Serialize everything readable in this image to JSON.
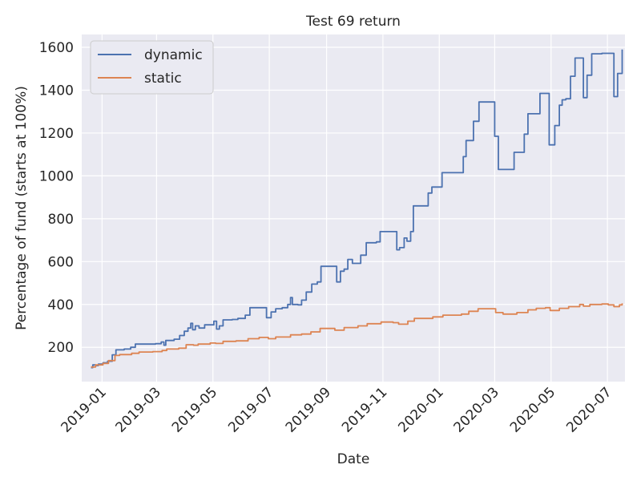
{
  "chart_data": {
    "type": "line",
    "title": "Test 69 return",
    "xlabel": "Date",
    "ylabel": "Percentage of fund (starts at 100%)",
    "xlim": [
      "2018-12-10",
      "2020-07-20"
    ],
    "ylim": [
      40,
      1660
    ],
    "y_ticks": [
      200,
      400,
      600,
      800,
      1000,
      1200,
      1400,
      1600
    ],
    "x_ticks": [
      "2019-01",
      "2019-03",
      "2019-05",
      "2019-07",
      "2019-09",
      "2019-11",
      "2020-01",
      "2020-03",
      "2020-05",
      "2020-07"
    ],
    "grid": true,
    "legend_position": "upper-left",
    "colors": {
      "background": "#eaeaf2",
      "grid": "#ffffff",
      "dynamic": "#4c72b0",
      "static": "#dd8452"
    },
    "series": [
      {
        "name": "dynamic",
        "points": [
          [
            "2018-12-20",
            105
          ],
          [
            "2018-12-22",
            118
          ],
          [
            "2018-12-25",
            115
          ],
          [
            "2018-12-28",
            122
          ],
          [
            "2019-01-02",
            128
          ],
          [
            "2019-01-07",
            135
          ],
          [
            "2019-01-12",
            165
          ],
          [
            "2019-01-16",
            188
          ],
          [
            "2019-01-25",
            192
          ],
          [
            "2019-02-01",
            200
          ],
          [
            "2019-02-06",
            215
          ],
          [
            "2019-02-15",
            215
          ],
          [
            "2019-02-28",
            217
          ],
          [
            "2019-03-06",
            225
          ],
          [
            "2019-03-09",
            210
          ],
          [
            "2019-03-11",
            232
          ],
          [
            "2019-03-20",
            238
          ],
          [
            "2019-03-26",
            255
          ],
          [
            "2019-03-31",
            275
          ],
          [
            "2019-04-04",
            290
          ],
          [
            "2019-04-07",
            312
          ],
          [
            "2019-04-09",
            282
          ],
          [
            "2019-04-12",
            300
          ],
          [
            "2019-04-16",
            290
          ],
          [
            "2019-04-22",
            305
          ],
          [
            "2019-04-28",
            305
          ],
          [
            "2019-05-02",
            322
          ],
          [
            "2019-05-05",
            285
          ],
          [
            "2019-05-08",
            300
          ],
          [
            "2019-05-12",
            328
          ],
          [
            "2019-05-22",
            330
          ],
          [
            "2019-05-28",
            335
          ],
          [
            "2019-06-05",
            350
          ],
          [
            "2019-06-10",
            385
          ],
          [
            "2019-06-22",
            385
          ],
          [
            "2019-06-28",
            338
          ],
          [
            "2019-07-03",
            365
          ],
          [
            "2019-07-08",
            380
          ],
          [
            "2019-07-15",
            385
          ],
          [
            "2019-07-21",
            400
          ],
          [
            "2019-07-24",
            432
          ],
          [
            "2019-07-26",
            400
          ],
          [
            "2019-08-01",
            398
          ],
          [
            "2019-08-05",
            420
          ],
          [
            "2019-08-10",
            458
          ],
          [
            "2019-08-16",
            495
          ],
          [
            "2019-08-22",
            505
          ],
          [
            "2019-08-26",
            578
          ],
          [
            "2019-09-08",
            578
          ],
          [
            "2019-09-12",
            505
          ],
          [
            "2019-09-16",
            555
          ],
          [
            "2019-09-20",
            565
          ],
          [
            "2019-09-24",
            610
          ],
          [
            "2019-09-29",
            592
          ],
          [
            "2019-10-08",
            630
          ],
          [
            "2019-10-14",
            688
          ],
          [
            "2019-10-25",
            692
          ],
          [
            "2019-10-29",
            740
          ],
          [
            "2019-11-14",
            740
          ],
          [
            "2019-11-16",
            655
          ],
          [
            "2019-11-19",
            665
          ],
          [
            "2019-11-24",
            710
          ],
          [
            "2019-11-27",
            695
          ],
          [
            "2019-12-01",
            740
          ],
          [
            "2019-12-04",
            860
          ],
          [
            "2019-12-18",
            860
          ],
          [
            "2019-12-20",
            920
          ],
          [
            "2019-12-24",
            948
          ],
          [
            "2020-01-04",
            1015
          ],
          [
            "2020-01-23",
            1015
          ],
          [
            "2020-01-27",
            1090
          ],
          [
            "2020-01-30",
            1165
          ],
          [
            "2020-02-07",
            1255
          ],
          [
            "2020-02-13",
            1345
          ],
          [
            "2020-02-26",
            1345
          ],
          [
            "2020-03-01",
            1185
          ],
          [
            "2020-03-05",
            1030
          ],
          [
            "2020-03-14",
            1030
          ],
          [
            "2020-03-22",
            1110
          ],
          [
            "2020-04-02",
            1195
          ],
          [
            "2020-04-06",
            1290
          ],
          [
            "2020-04-13",
            1290
          ],
          [
            "2020-04-19",
            1385
          ],
          [
            "2020-04-25",
            1385
          ],
          [
            "2020-04-29",
            1145
          ],
          [
            "2020-05-05",
            1235
          ],
          [
            "2020-05-10",
            1330
          ],
          [
            "2020-05-13",
            1355
          ],
          [
            "2020-05-17",
            1360
          ],
          [
            "2020-05-22",
            1465
          ],
          [
            "2020-05-27",
            1550
          ],
          [
            "2020-06-01",
            1550
          ],
          [
            "2020-06-05",
            1365
          ],
          [
            "2020-06-09",
            1470
          ],
          [
            "2020-06-14",
            1570
          ],
          [
            "2020-06-25",
            1572
          ],
          [
            "2020-07-05",
            1572
          ],
          [
            "2020-07-08",
            1370
          ],
          [
            "2020-07-12",
            1478
          ],
          [
            "2020-07-15",
            1478
          ],
          [
            "2020-07-17",
            1590
          ]
        ]
      },
      {
        "name": "static",
        "points": [
          [
            "2018-12-20",
            108
          ],
          [
            "2018-12-25",
            118
          ],
          [
            "2019-01-02",
            125
          ],
          [
            "2019-01-08",
            138
          ],
          [
            "2019-01-15",
            162
          ],
          [
            "2019-01-20",
            166
          ],
          [
            "2019-02-02",
            172
          ],
          [
            "2019-02-10",
            178
          ],
          [
            "2019-02-25",
            180
          ],
          [
            "2019-03-07",
            185
          ],
          [
            "2019-03-12",
            192
          ],
          [
            "2019-03-25",
            196
          ],
          [
            "2019-04-02",
            212
          ],
          [
            "2019-04-10",
            210
          ],
          [
            "2019-04-15",
            215
          ],
          [
            "2019-04-28",
            220
          ],
          [
            "2019-05-04",
            218
          ],
          [
            "2019-05-12",
            228
          ],
          [
            "2019-05-26",
            230
          ],
          [
            "2019-06-08",
            240
          ],
          [
            "2019-06-20",
            246
          ],
          [
            "2019-06-30",
            240
          ],
          [
            "2019-07-08",
            248
          ],
          [
            "2019-07-24",
            258
          ],
          [
            "2019-08-05",
            262
          ],
          [
            "2019-08-15",
            272
          ],
          [
            "2019-08-25",
            288
          ],
          [
            "2019-09-10",
            280
          ],
          [
            "2019-09-20",
            292
          ],
          [
            "2019-10-05",
            300
          ],
          [
            "2019-10-15",
            310
          ],
          [
            "2019-10-30",
            318
          ],
          [
            "2019-11-12",
            315
          ],
          [
            "2019-11-18",
            308
          ],
          [
            "2019-11-28",
            322
          ],
          [
            "2019-12-05",
            335
          ],
          [
            "2019-12-25",
            342
          ],
          [
            "2020-01-05",
            350
          ],
          [
            "2020-01-25",
            355
          ],
          [
            "2020-02-02",
            368
          ],
          [
            "2020-02-12",
            380
          ],
          [
            "2020-02-26",
            380
          ],
          [
            "2020-03-02",
            362
          ],
          [
            "2020-03-10",
            355
          ],
          [
            "2020-03-25",
            362
          ],
          [
            "2020-04-06",
            375
          ],
          [
            "2020-04-15",
            382
          ],
          [
            "2020-04-25",
            385
          ],
          [
            "2020-04-30",
            372
          ],
          [
            "2020-05-10",
            382
          ],
          [
            "2020-05-20",
            390
          ],
          [
            "2020-06-01",
            400
          ],
          [
            "2020-06-05",
            392
          ],
          [
            "2020-06-12",
            400
          ],
          [
            "2020-06-25",
            402
          ],
          [
            "2020-07-02",
            398
          ],
          [
            "2020-07-08",
            390
          ],
          [
            "2020-07-14",
            398
          ],
          [
            "2020-07-17",
            405
          ]
        ]
      }
    ]
  }
}
